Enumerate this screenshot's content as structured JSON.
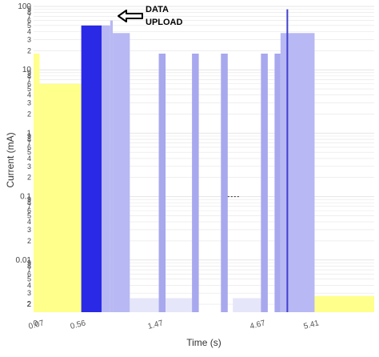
{
  "chart_data": {
    "type": "bar",
    "xlabel": "Time (s)",
    "ylabel": "Current (mA)",
    "y_scale": "log",
    "ylim": [
      0.0015,
      100
    ],
    "grid": true,
    "x_tick_labels": [
      "0",
      "0.07",
      "0.56",
      "1.47",
      "4.67",
      "5.41"
    ],
    "y_tick_labels": {
      "100": [
        "100",
        "9",
        "8",
        "7",
        "6",
        "5",
        "4",
        "3",
        "2"
      ],
      "10": [
        "10",
        "9",
        "8",
        "7",
        "6",
        "5",
        "4",
        "3",
        "2"
      ],
      "1": [
        "1",
        "9",
        "8",
        "7",
        "6",
        "5",
        "4",
        "3",
        "2"
      ],
      "0.1": [
        "0.1",
        "9",
        "8",
        "7",
        "6",
        "5",
        "4",
        "3",
        "2"
      ],
      "0.01": [
        "0.01",
        "9",
        "8",
        "7",
        "6",
        "5",
        "4",
        "3",
        "2"
      ],
      "0.001": [
        "2"
      ]
    },
    "colors": {
      "idle": "#ffff8c",
      "radio": "#2a2ae6",
      "active": "#b8b8f4",
      "pulse": "#a8a8ee",
      "sleep": "#e6e6fa",
      "marker": "#4040cc",
      "grid": "#e4e4e4"
    },
    "segments": [
      {
        "label": "0",
        "value": 18,
        "color": "idle",
        "x0": 0,
        "x1": 0.07
      },
      {
        "label": "0.07",
        "value": 6,
        "color": "idle",
        "x0": 0.07,
        "x1": 0.56
      },
      {
        "label": "0.56",
        "value": 50,
        "color": "radio",
        "x0": 0.56,
        "x1": 0.8
      },
      {
        "label": "",
        "value": 50,
        "color": "active",
        "x0": 0.8,
        "x1": 0.9
      },
      {
        "label": "",
        "value": 60,
        "color": "active",
        "x0": 0.9,
        "x1": 0.93
      },
      {
        "label": "",
        "value": 38,
        "color": "active",
        "x0": 0.93,
        "x1": 1.13
      },
      {
        "label": "",
        "value": 0.0025,
        "color": "sleep",
        "x0": 1.13,
        "x1": 1.47
      },
      {
        "label": "1.47",
        "value": 18,
        "color": "pulse",
        "x0": 1.47,
        "x1": 1.55
      },
      {
        "label": "",
        "value": 0.0025,
        "color": "sleep",
        "x0": 1.55,
        "x1": 1.86
      },
      {
        "label": "",
        "value": 18,
        "color": "pulse",
        "x0": 1.86,
        "x1": 1.94
      },
      {
        "label": "",
        "value": 18,
        "color": "pulse",
        "x0": 2.2,
        "x1": 2.28
      },
      {
        "label": "",
        "value": 0.0025,
        "color": "sleep",
        "x0": 2.34,
        "x1": 2.67
      },
      {
        "label": "4.67",
        "value": 18,
        "color": "pulse",
        "x0": 2.67,
        "x1": 2.75
      },
      {
        "label": "",
        "value": 18,
        "color": "pulse",
        "x0": 2.83,
        "x1": 2.9
      },
      {
        "label": "",
        "value": 38,
        "color": "active",
        "x0": 2.9,
        "x1": 3.3
      },
      {
        "label": "5.41",
        "value": 0.0027,
        "color": "idle",
        "x0": 3.3,
        "x1": 4.0
      }
    ],
    "marker_line": {
      "x": 2.98,
      "top": 90
    },
    "dashed_level": {
      "value": 0.1,
      "x0": 2.28,
      "x1": 2.42
    },
    "annotation": {
      "line1": "DATA",
      "line2": "UPLOAD"
    }
  }
}
